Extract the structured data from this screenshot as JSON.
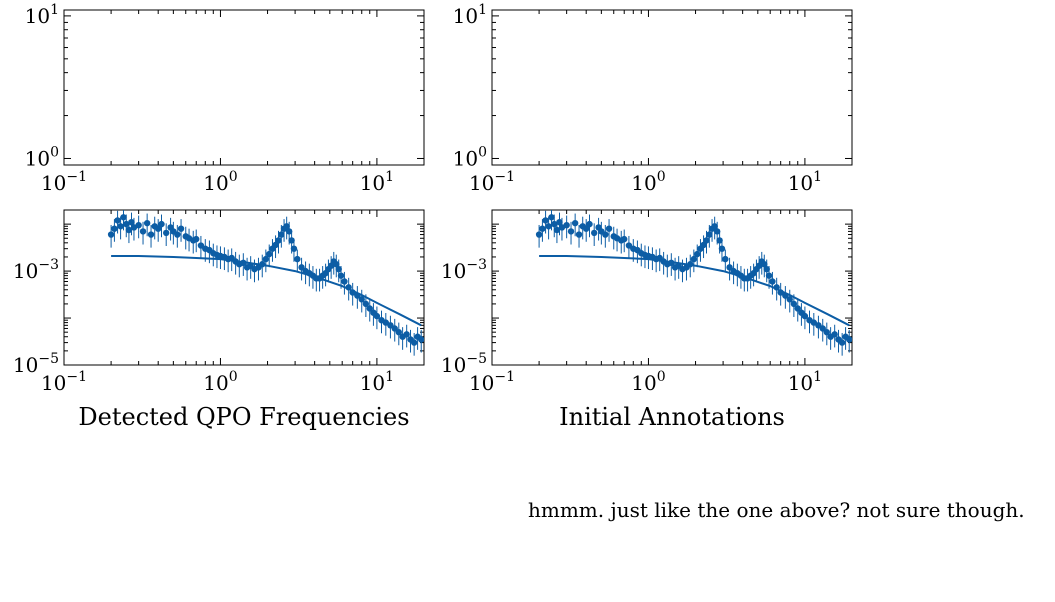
{
  "chart_data": [
    {
      "type": "scatter",
      "panel": "top-left",
      "xscale": "log",
      "yscale": "log",
      "xlim": [
        0.1,
        20
      ],
      "ylim": [
        0.9,
        11
      ],
      "x_ticks": [
        "10^-1",
        "10^0",
        "10^1"
      ],
      "y_ticks": [
        "10^0",
        "10^1"
      ],
      "series": []
    },
    {
      "type": "scatter",
      "panel": "top-right",
      "xscale": "log",
      "yscale": "log",
      "xlim": [
        0.1,
        20
      ],
      "ylim": [
        0.9,
        11
      ],
      "x_ticks": [
        "10^-1",
        "10^0",
        "10^1"
      ],
      "y_ticks": [
        "10^0",
        "10^1"
      ],
      "series": []
    },
    {
      "type": "scatter",
      "panel": "bottom-left",
      "xscale": "log",
      "yscale": "log",
      "xlim": [
        0.1,
        20
      ],
      "ylim": [
        1e-05,
        0.02
      ],
      "x_ticks": [
        "10^-1",
        "10^0",
        "10^1"
      ],
      "y_ticks": [
        "10^-5",
        "10^-3"
      ],
      "xlabel": "Detected QPO Frequencies",
      "markers": {
        "x": [
          0.2,
          0.21,
          0.22,
          0.23,
          0.24,
          0.25,
          0.26,
          0.27,
          0.28,
          0.3,
          0.32,
          0.34,
          0.36,
          0.38,
          0.4,
          0.42,
          0.45,
          0.48,
          0.5,
          0.53,
          0.56,
          0.6,
          0.63,
          0.67,
          0.7,
          0.75,
          0.8,
          0.85,
          0.9,
          0.95,
          1.0,
          1.06,
          1.12,
          1.18,
          1.25,
          1.32,
          1.4,
          1.48,
          1.56,
          1.65,
          1.75,
          1.85,
          1.95,
          2.05,
          2.15,
          2.25,
          2.35,
          2.45,
          2.55,
          2.65,
          2.75,
          2.85,
          2.95,
          3.1,
          3.3,
          3.5,
          3.7,
          3.9,
          4.1,
          4.3,
          4.5,
          4.7,
          4.9,
          5.1,
          5.3,
          5.5,
          5.7,
          5.9,
          6.2,
          6.6,
          7.0,
          7.5,
          8.0,
          8.5,
          9.0,
          9.5,
          10.0,
          10.7,
          11.4,
          12.2,
          13.0,
          13.8,
          14.6,
          15.5,
          16.4,
          17.3,
          18.2,
          19.2
        ],
        "y": [
          0.006,
          0.008,
          0.012,
          0.009,
          0.014,
          0.01,
          0.0075,
          0.011,
          0.0085,
          0.0095,
          0.007,
          0.0105,
          0.006,
          0.009,
          0.008,
          0.01,
          0.0065,
          0.0085,
          0.007,
          0.006,
          0.008,
          0.0055,
          0.005,
          0.0045,
          0.0048,
          0.0035,
          0.003,
          0.0028,
          0.0024,
          0.0022,
          0.0021,
          0.002,
          0.0018,
          0.0019,
          0.0016,
          0.0014,
          0.0015,
          0.0012,
          0.0013,
          0.0011,
          0.0012,
          0.0014,
          0.0018,
          0.0023,
          0.003,
          0.0036,
          0.0045,
          0.006,
          0.008,
          0.009,
          0.007,
          0.0045,
          0.003,
          0.0018,
          0.0012,
          0.001,
          0.0009,
          0.0008,
          0.0007,
          0.0007,
          0.0008,
          0.0009,
          0.0011,
          0.0013,
          0.0016,
          0.0014,
          0.0011,
          0.0008,
          0.0006,
          0.00045,
          0.00035,
          0.0003,
          0.00025,
          0.0002,
          0.00016,
          0.00013,
          0.00011,
          9e-05,
          8e-05,
          7e-05,
          6e-05,
          5e-05,
          4e-05,
          4.5e-05,
          3.5e-05,
          3e-05,
          4e-05,
          3.5e-05
        ]
      },
      "model": {
        "x": [
          0.2,
          0.3,
          0.5,
          0.7,
          1.0,
          1.5,
          2.0,
          3.0,
          4.0,
          6.0,
          8.0,
          10.0,
          14.0,
          19.2
        ],
        "y": [
          0.0021,
          0.0021,
          0.002,
          0.0019,
          0.0018,
          0.0015,
          0.0013,
          0.001,
          0.00076,
          0.00048,
          0.00031,
          0.00021,
          0.00012,
          7e-05
        ]
      }
    },
    {
      "type": "scatter",
      "panel": "bottom-right",
      "xscale": "log",
      "yscale": "log",
      "xlim": [
        0.1,
        20
      ],
      "ylim": [
        1e-05,
        0.02
      ],
      "x_ticks": [
        "10^-1",
        "10^0",
        "10^1"
      ],
      "y_ticks": [
        "10^-5",
        "10^-3"
      ],
      "xlabel": "Initial Annotations",
      "markers": {
        "x": [
          0.2,
          0.21,
          0.22,
          0.23,
          0.24,
          0.25,
          0.26,
          0.27,
          0.28,
          0.3,
          0.32,
          0.34,
          0.36,
          0.38,
          0.4,
          0.42,
          0.45,
          0.48,
          0.5,
          0.53,
          0.56,
          0.6,
          0.63,
          0.67,
          0.7,
          0.75,
          0.8,
          0.85,
          0.9,
          0.95,
          1.0,
          1.06,
          1.12,
          1.18,
          1.25,
          1.32,
          1.4,
          1.48,
          1.56,
          1.65,
          1.75,
          1.85,
          1.95,
          2.05,
          2.15,
          2.25,
          2.35,
          2.45,
          2.55,
          2.65,
          2.75,
          2.85,
          2.95,
          3.1,
          3.3,
          3.5,
          3.7,
          3.9,
          4.1,
          4.3,
          4.5,
          4.7,
          4.9,
          5.1,
          5.3,
          5.5,
          5.7,
          5.9,
          6.2,
          6.6,
          7.0,
          7.5,
          8.0,
          8.5,
          9.0,
          9.5,
          10.0,
          10.7,
          11.4,
          12.2,
          13.0,
          13.8,
          14.6,
          15.5,
          16.4,
          17.3,
          18.2,
          19.2
        ],
        "y": [
          0.006,
          0.008,
          0.012,
          0.009,
          0.014,
          0.01,
          0.0075,
          0.011,
          0.0085,
          0.0095,
          0.007,
          0.0105,
          0.006,
          0.009,
          0.008,
          0.01,
          0.0065,
          0.0085,
          0.007,
          0.006,
          0.008,
          0.0055,
          0.005,
          0.0045,
          0.0048,
          0.0035,
          0.003,
          0.0028,
          0.0024,
          0.0022,
          0.0021,
          0.002,
          0.0018,
          0.0019,
          0.0016,
          0.0014,
          0.0015,
          0.0012,
          0.0013,
          0.0011,
          0.0012,
          0.0014,
          0.0018,
          0.0023,
          0.003,
          0.0036,
          0.0045,
          0.006,
          0.008,
          0.009,
          0.007,
          0.0045,
          0.003,
          0.0018,
          0.0012,
          0.001,
          0.0009,
          0.0008,
          0.0007,
          0.0007,
          0.0008,
          0.0009,
          0.0011,
          0.0013,
          0.0016,
          0.0014,
          0.0011,
          0.0008,
          0.0006,
          0.00045,
          0.00035,
          0.0003,
          0.00025,
          0.0002,
          0.00016,
          0.00013,
          0.00011,
          9e-05,
          8e-05,
          7e-05,
          6e-05,
          5e-05,
          4e-05,
          4.5e-05,
          3.5e-05,
          3e-05,
          4e-05,
          3.5e-05
        ]
      },
      "model": {
        "x": [
          0.2,
          0.3,
          0.5,
          0.7,
          1.0,
          1.5,
          2.0,
          3.0,
          4.0,
          6.0,
          8.0,
          10.0,
          14.0,
          19.2
        ],
        "y": [
          0.0021,
          0.0021,
          0.002,
          0.0019,
          0.0018,
          0.0015,
          0.0013,
          0.001,
          0.00076,
          0.00048,
          0.00031,
          0.00021,
          0.00012,
          7e-05
        ]
      }
    }
  ],
  "captions": {
    "left": "Detected QPO Frequencies",
    "right": "Initial Annotations"
  },
  "note": "hmmm. just like the one above? not sure though.",
  "colors": {
    "series": "#0c5da5",
    "axes": "#000000"
  }
}
